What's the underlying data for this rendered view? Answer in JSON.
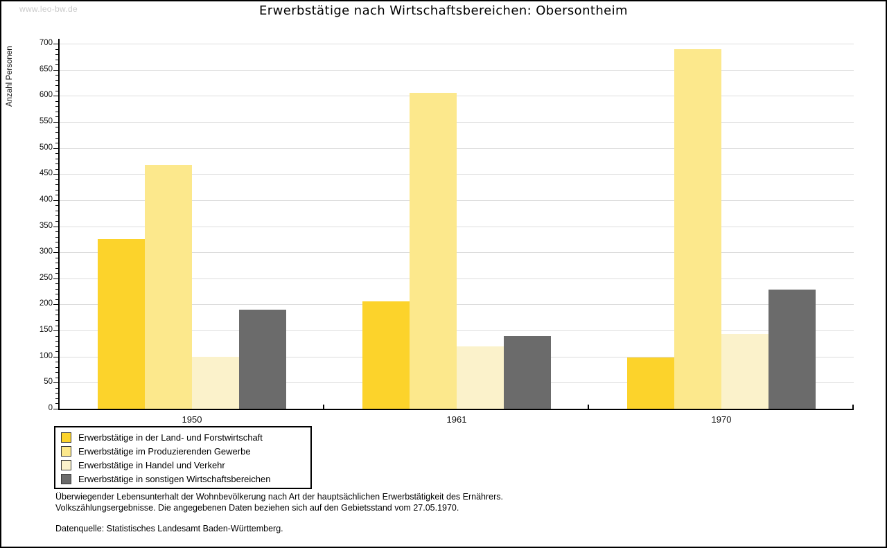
{
  "watermark": "www.leo-bw.de",
  "title": "Erwerbstätige nach Wirtschaftsbereichen: Obersontheim",
  "chart_data": {
    "type": "bar",
    "title": "Erwerbstätige nach Wirtschaftsbereichen: Obersontheim",
    "xlabel": "",
    "ylabel": "Anzahl Personen",
    "ylim": [
      0,
      700
    ],
    "ytick_step": 50,
    "yminor_step": 10,
    "grid": true,
    "legend_position": "bottom-left",
    "gridline_color": "#DCDCDC",
    "categories": [
      "1950",
      "1961",
      "1970"
    ],
    "series": [
      {
        "name": "Erwerbstätige in der Land- und Forstwirtschaft",
        "color": "#FCD32B",
        "values": [
          326,
          206,
          98
        ]
      },
      {
        "name": "Erwerbstätige im Produzierenden Gewerbe",
        "color": "#FCE88C",
        "values": [
          467,
          606,
          690
        ]
      },
      {
        "name": "Erwerbstätige in Handel und Verkehr",
        "color": "#FBF2CB",
        "values": [
          100,
          120,
          143
        ]
      },
      {
        "name": "Erwerbstätige in sonstigen Wirtschaftsbereichen",
        "color": "#6B6B6B",
        "values": [
          190,
          139,
          228
        ]
      }
    ]
  },
  "footnotes": {
    "line1": "Überwiegender Lebensunterhalt der Wohnbevölkerung nach Art der hauptsächlichen Erwerbstätigkeit des Ernährers.",
    "line2": "Volkszählungsergebnisse. Die angegebenen Daten beziehen sich auf den Gebietsstand vom 27.05.1970.",
    "source": "Datenquelle: Statistisches Landesamt Baden-Württemberg."
  }
}
